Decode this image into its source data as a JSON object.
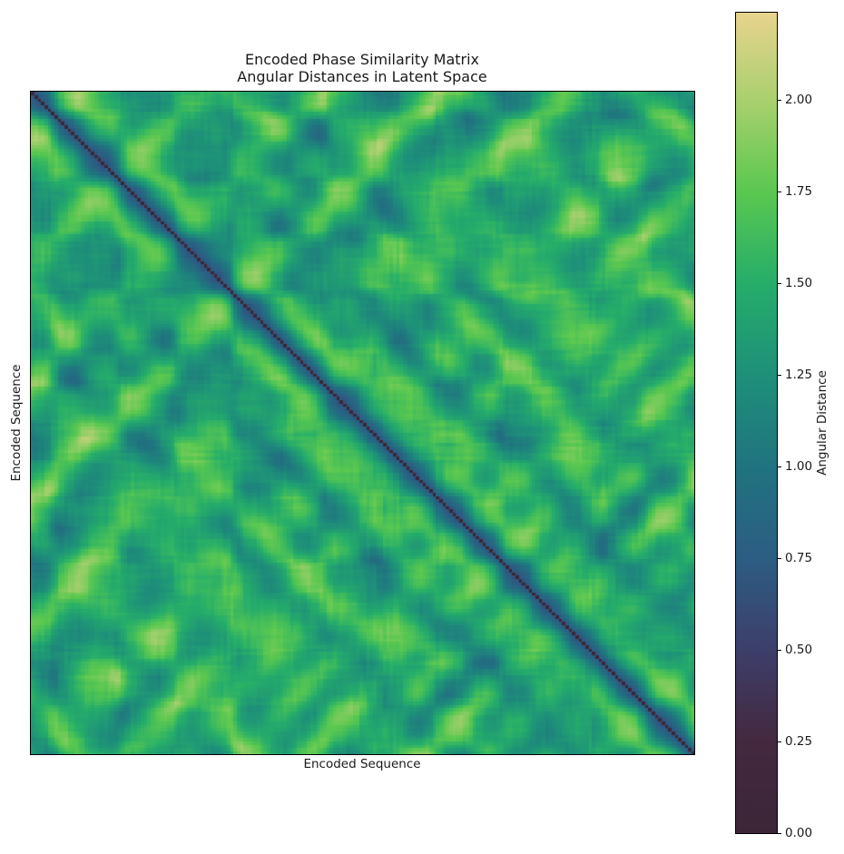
{
  "chart_data": {
    "type": "heatmap",
    "title": "Encoded Phase Similarity Matrix",
    "subtitle": "Angular Distances in Latent Space",
    "xlabel": "Encoded Sequence",
    "ylabel": "Encoded Sequence",
    "x_ticks": [],
    "y_ticks": [],
    "matrix_size_estimate": 200,
    "symmetric": true,
    "diagonal_value": 0.0,
    "typical_value_range": [
      0.6,
      2.05
    ],
    "description": "Symmetric pairwise angular-distance matrix; diagonal is ~0 (dark purple line from top-left to bottom-right); off-diagonal values mostly 1.0-1.9 with block/checkerboard structure",
    "colorbar": {
      "label": "Angular Distance",
      "vmin": 0.0,
      "vmax": 2.24,
      "ticks": [
        0.0,
        0.25,
        0.5,
        0.75,
        1.0,
        1.25,
        1.5,
        1.75,
        2.0
      ],
      "tick_labels": [
        "0.00",
        "0.25",
        "0.50",
        "0.75",
        "1.00",
        "1.25",
        "1.50",
        "1.75",
        "2.00"
      ],
      "colormap_stops": [
        {
          "v": 0.0,
          "color": "#3b2637"
        },
        {
          "v": 0.25,
          "color": "#44283f"
        },
        {
          "v": 0.5,
          "color": "#3d3e6a"
        },
        {
          "v": 0.75,
          "color": "#2c5d83"
        },
        {
          "v": 1.0,
          "color": "#207380"
        },
        {
          "v": 1.25,
          "color": "#1e9079"
        },
        {
          "v": 1.5,
          "color": "#25ad6a"
        },
        {
          "v": 1.75,
          "color": "#5ac850"
        },
        {
          "v": 2.0,
          "color": "#a9d06e"
        },
        {
          "v": 2.24,
          "color": "#e8d38e"
        }
      ]
    },
    "legend_position": "right (colorbar)",
    "grid": false
  }
}
